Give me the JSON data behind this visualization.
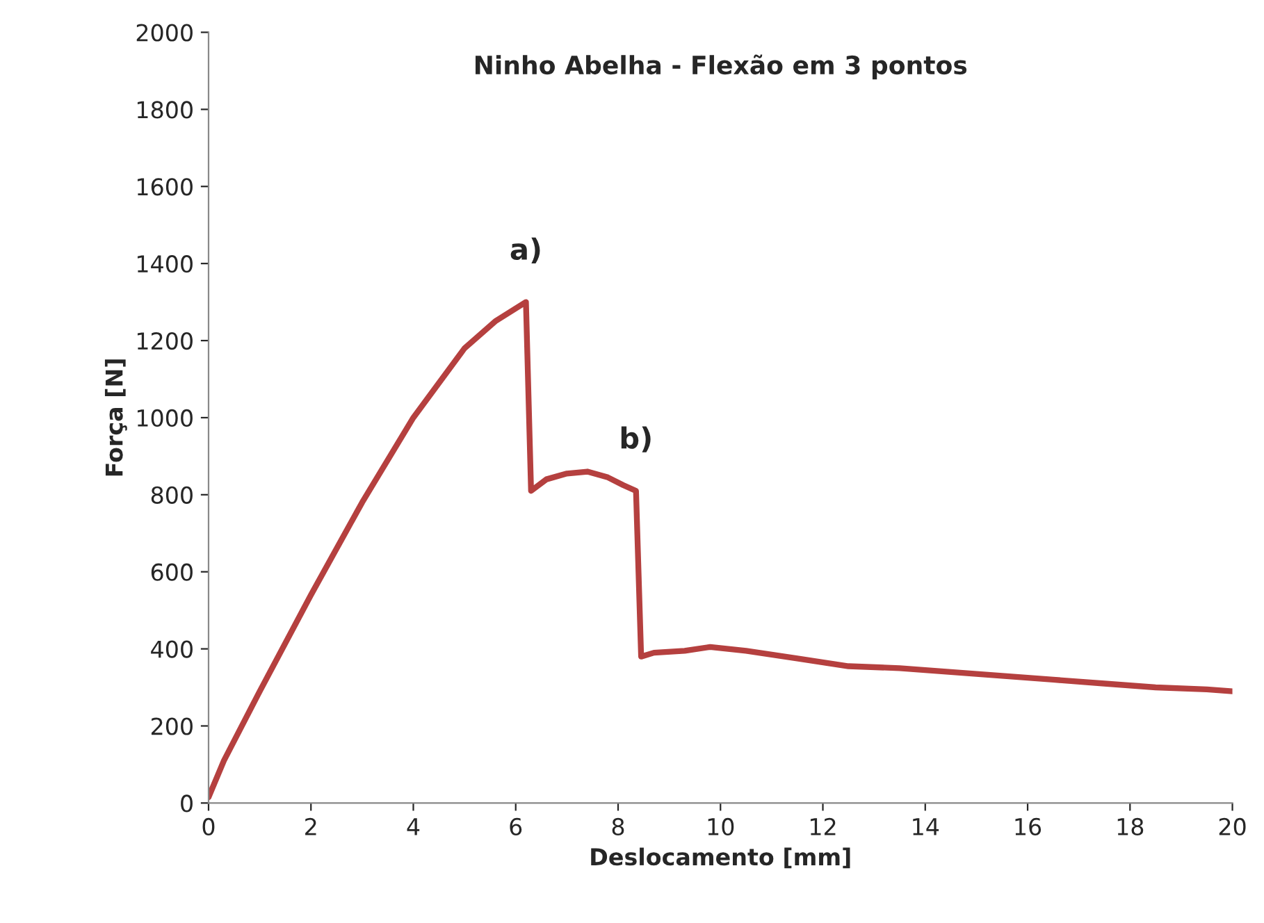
{
  "chart_data": {
    "type": "line",
    "title": "Ninho Abelha - Flexão em 3 pontos",
    "xlabel": "Deslocamento [mm]",
    "ylabel": "Força [N]",
    "series": [
      {
        "color": "#b5403f",
        "x": [
          0,
          0.3,
          1,
          2,
          3,
          4,
          5,
          5.6,
          6.2,
          6.3,
          6.6,
          7.0,
          7.4,
          7.8,
          8.1,
          8.35,
          8.45,
          8.7,
          9.3,
          9.8,
          10.5,
          11.5,
          12.5,
          13.5,
          14.5,
          15.5,
          16.5,
          17.5,
          18.5,
          19.5,
          20
        ],
        "values": [
          15,
          110,
          290,
          540,
          780,
          1000,
          1180,
          1250,
          1300,
          810,
          840,
          855,
          860,
          845,
          825,
          810,
          380,
          390,
          395,
          405,
          395,
          375,
          355,
          350,
          340,
          330,
          320,
          310,
          300,
          295,
          290
        ]
      }
    ],
    "annotations": [
      {
        "text": "a)",
        "x": 6.2,
        "y": 1300
      },
      {
        "text": "b)",
        "x": 8.35,
        "y": 810
      }
    ],
    "xlim": [
      0,
      20
    ],
    "xticks": [
      0,
      2,
      4,
      6,
      8,
      10,
      12,
      14,
      16,
      18,
      20
    ],
    "ylim": [
      0,
      2000
    ],
    "yticks": [
      0,
      200,
      400,
      600,
      800,
      1000,
      1200,
      1400,
      1600,
      1800,
      2000
    ],
    "grid": false,
    "legend": false,
    "marker": "none",
    "line_style": "solid"
  }
}
